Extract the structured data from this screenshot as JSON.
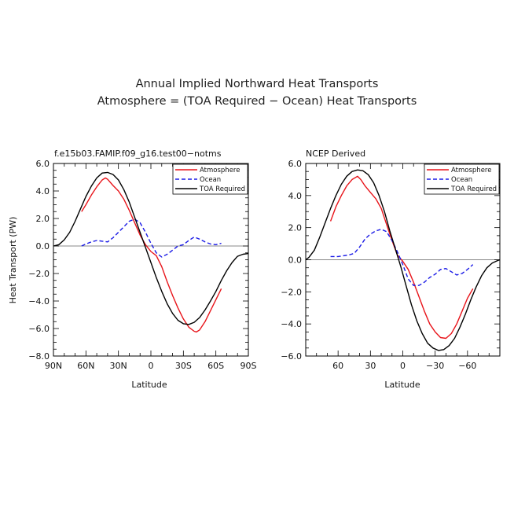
{
  "title": {
    "line1": "Annual Implied Northward Heat Transports",
    "line2": "Atmosphere = (TOA Required − Ocean) Heat Transports"
  },
  "chart_data": [
    {
      "type": "line",
      "subtitle": "f.e15b03.FAMIP.f09_g16.test00−notms",
      "xlabel": "Latitude",
      "ylabel": "Heat Transport (PW)",
      "xlim": [
        90,
        -90
      ],
      "ylim": [
        -8,
        6
      ],
      "xticks": [
        90,
        60,
        30,
        0,
        -30,
        -60,
        -90
      ],
      "xtick_labels": [
        "90N",
        "60N",
        "30N",
        "0",
        "30S",
        "60S",
        "90S"
      ],
      "yticks": [
        6,
        4,
        2,
        0,
        -2,
        -4,
        -6,
        -8
      ],
      "ytick_labels": [
        "6.0",
        "4.0",
        "2.0",
        "0.0",
        "−2.0",
        "−4.0",
        "−6.0",
        "−8.0"
      ],
      "zero_line": true,
      "legend": {
        "position": "top-right",
        "entries": [
          "Atmosphere",
          "Ocean",
          "TOA Required"
        ]
      },
      "series": [
        {
          "name": "Atmosphere",
          "color": "#e8141a",
          "style": "solid",
          "x": [
            64,
            60,
            55,
            50,
            45,
            42,
            40,
            35,
            30,
            25,
            20,
            15,
            10,
            5,
            0,
            -5,
            -10,
            -15,
            -20,
            -25,
            -30,
            -35,
            -40,
            -42,
            -45,
            -50,
            -55,
            -60,
            -65
          ],
          "y": [
            2.5,
            3.0,
            3.7,
            4.3,
            4.8,
            4.95,
            4.85,
            4.4,
            4.0,
            3.4,
            2.6,
            1.7,
            0.8,
            0.1,
            -0.4,
            -0.7,
            -1.5,
            -2.6,
            -3.6,
            -4.5,
            -5.3,
            -5.9,
            -6.2,
            -6.25,
            -6.1,
            -5.5,
            -4.7,
            -3.9,
            -3.1
          ]
        },
        {
          "name": "Ocean",
          "color": "#1a1ae6",
          "style": "dashed",
          "x": [
            64,
            60,
            55,
            50,
            45,
            40,
            35,
            30,
            25,
            20,
            15,
            10,
            5,
            0,
            -5,
            -10,
            -15,
            -20,
            -25,
            -30,
            -35,
            -40,
            -45,
            -50,
            -55,
            -60,
            -65
          ],
          "y": [
            0.0,
            0.15,
            0.3,
            0.4,
            0.35,
            0.3,
            0.6,
            1.0,
            1.4,
            1.8,
            1.95,
            1.7,
            1.0,
            0.2,
            -0.5,
            -0.8,
            -0.6,
            -0.3,
            0.0,
            0.1,
            0.4,
            0.65,
            0.5,
            0.3,
            0.15,
            0.1,
            0.2
          ]
        },
        {
          "name": "TOA Required",
          "color": "#000000",
          "style": "solid",
          "x": [
            90,
            85,
            80,
            75,
            70,
            65,
            60,
            55,
            50,
            45,
            40,
            35,
            30,
            25,
            20,
            15,
            10,
            5,
            0,
            -5,
            -10,
            -15,
            -20,
            -25,
            -30,
            -35,
            -40,
            -45,
            -50,
            -55,
            -60,
            -65,
            -70,
            -75,
            -80,
            -85,
            -90
          ],
          "y": [
            0.0,
            0.1,
            0.45,
            1.0,
            1.8,
            2.7,
            3.6,
            4.35,
            4.95,
            5.3,
            5.35,
            5.2,
            4.8,
            4.1,
            3.2,
            2.1,
            1.0,
            -0.1,
            -1.2,
            -2.3,
            -3.3,
            -4.2,
            -4.9,
            -5.4,
            -5.65,
            -5.7,
            -5.55,
            -5.2,
            -4.65,
            -4.0,
            -3.3,
            -2.5,
            -1.8,
            -1.2,
            -0.75,
            -0.6,
            -0.55
          ]
        }
      ]
    },
    {
      "type": "line",
      "subtitle": "NCEP Derived",
      "xlabel": "Latitude",
      "ylabel": "",
      "xlim": [
        90,
        -90
      ],
      "ylim": [
        -6,
        6
      ],
      "xticks": [
        60,
        30,
        0,
        -30,
        -60
      ],
      "xtick_labels": [
        "60",
        "30",
        "0",
        "−30",
        "−60"
      ],
      "yticks": [
        6,
        4,
        2,
        0,
        -2,
        -4,
        -6
      ],
      "ytick_labels": [
        "6.0",
        "4.0",
        "2.0",
        "0.0",
        "−2.0",
        "−4.0",
        "−6.0"
      ],
      "zero_line": true,
      "legend": {
        "position": "top-right",
        "entries": [
          "Atmosphere",
          "Ocean",
          "TOA Required"
        ]
      },
      "series": [
        {
          "name": "Atmosphere",
          "color": "#e8141a",
          "style": "solid",
          "x": [
            67,
            62,
            57,
            52,
            47,
            42,
            39,
            35,
            30,
            25,
            20,
            15,
            10,
            5,
            0,
            -5,
            -10,
            -15,
            -20,
            -25,
            -30,
            -35,
            -40,
            -45,
            -50,
            -55,
            -60,
            -65
          ],
          "y": [
            2.4,
            3.3,
            4.0,
            4.6,
            5.0,
            5.2,
            5.0,
            4.6,
            4.2,
            3.8,
            3.2,
            2.2,
            1.2,
            0.3,
            -0.1,
            -0.6,
            -1.4,
            -2.3,
            -3.2,
            -4.0,
            -4.5,
            -4.85,
            -4.9,
            -4.6,
            -4.0,
            -3.2,
            -2.4,
            -1.8
          ]
        },
        {
          "name": "Ocean",
          "color": "#1a1ae6",
          "style": "dashed",
          "x": [
            67,
            60,
            55,
            50,
            45,
            40,
            35,
            30,
            25,
            20,
            15,
            10,
            5,
            0,
            -5,
            -10,
            -15,
            -20,
            -25,
            -30,
            -35,
            -40,
            -45,
            -50,
            -55,
            -60,
            -65
          ],
          "y": [
            0.2,
            0.2,
            0.25,
            0.3,
            0.4,
            0.8,
            1.3,
            1.6,
            1.8,
            1.9,
            1.75,
            1.2,
            0.5,
            -0.3,
            -1.2,
            -1.6,
            -1.6,
            -1.4,
            -1.1,
            -0.9,
            -0.6,
            -0.55,
            -0.75,
            -0.95,
            -0.85,
            -0.6,
            -0.3
          ]
        },
        {
          "name": "TOA Required",
          "color": "#000000",
          "style": "solid",
          "x": [
            90,
            87,
            82,
            77,
            72,
            67,
            62,
            57,
            52,
            47,
            42,
            37,
            32,
            27,
            22,
            17,
            12,
            7,
            2,
            -3,
            -8,
            -13,
            -18,
            -23,
            -28,
            -33,
            -38,
            -43,
            -48,
            -53,
            -58,
            -63,
            -68,
            -73,
            -78,
            -83,
            -88,
            -90
          ],
          "y": [
            0.0,
            0.15,
            0.6,
            1.4,
            2.3,
            3.2,
            4.0,
            4.7,
            5.2,
            5.5,
            5.6,
            5.55,
            5.3,
            4.8,
            4.0,
            3.0,
            1.8,
            0.7,
            -0.4,
            -1.6,
            -2.8,
            -3.8,
            -4.6,
            -5.2,
            -5.5,
            -5.65,
            -5.6,
            -5.35,
            -4.9,
            -4.2,
            -3.4,
            -2.5,
            -1.7,
            -1.0,
            -0.5,
            -0.2,
            -0.05,
            0.0
          ]
        }
      ]
    }
  ]
}
